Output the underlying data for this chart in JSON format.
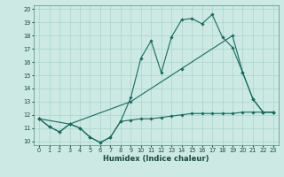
{
  "xlabel": "Humidex (Indice chaleur)",
  "xlim": [
    -0.5,
    23.5
  ],
  "ylim": [
    9.7,
    20.3
  ],
  "yticks": [
    10,
    11,
    12,
    13,
    14,
    15,
    16,
    17,
    18,
    19,
    20
  ],
  "xticks": [
    0,
    1,
    2,
    3,
    4,
    5,
    6,
    7,
    8,
    9,
    10,
    11,
    12,
    13,
    14,
    15,
    16,
    17,
    18,
    19,
    20,
    21,
    22,
    23
  ],
  "bg_color": "#cce9e4",
  "grid_color": "#aad4cc",
  "line_color": "#1a6b5a",
  "line1_x": [
    0,
    1,
    2,
    3,
    4,
    5,
    6,
    7,
    8,
    9,
    10,
    11,
    12,
    13,
    14,
    15,
    16,
    17,
    18,
    19,
    20,
    21,
    22,
    23
  ],
  "line1_y": [
    11.7,
    11.1,
    10.7,
    11.3,
    11.0,
    10.3,
    9.9,
    10.3,
    11.5,
    13.3,
    16.3,
    17.6,
    15.2,
    17.9,
    19.2,
    19.3,
    18.9,
    19.6,
    17.9,
    17.1,
    15.2,
    13.2,
    12.2,
    12.2
  ],
  "line2_x": [
    0,
    1,
    2,
    3,
    4,
    5,
    6,
    7,
    8,
    9,
    10,
    11,
    12,
    13,
    14,
    15,
    16,
    17,
    18,
    19,
    20,
    21,
    22,
    23
  ],
  "line2_y": [
    11.7,
    11.1,
    10.7,
    11.3,
    11.0,
    10.3,
    9.9,
    10.3,
    11.5,
    11.6,
    11.7,
    11.7,
    11.8,
    11.9,
    12.0,
    12.1,
    12.1,
    12.1,
    12.1,
    12.1,
    12.2,
    12.2,
    12.2,
    12.2
  ],
  "line3_x": [
    0,
    3,
    9,
    14,
    19,
    20,
    21,
    22,
    23
  ],
  "line3_y": [
    11.7,
    11.3,
    13.0,
    15.5,
    18.0,
    15.2,
    13.2,
    12.2,
    12.2
  ]
}
